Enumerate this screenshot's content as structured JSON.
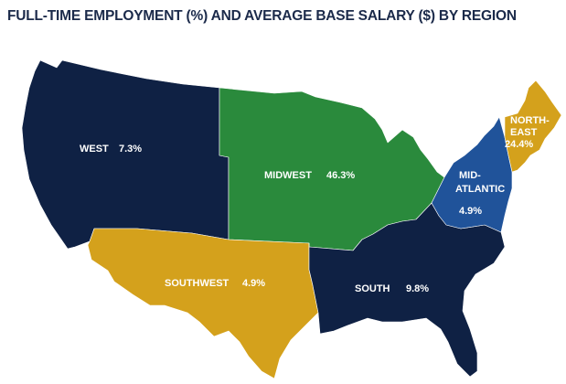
{
  "title": "FULL-TIME EMPLOYMENT (%) AND AVERAGE BASE SALARY ($) BY REGION",
  "colors": {
    "west": "#0f2144",
    "midwest": "#2a8a3c",
    "southwest": "#d4a11c",
    "south": "#0f2144",
    "mid_atlantic": "#20539a",
    "northeast": "#d4a11c"
  },
  "regions": {
    "west": {
      "name": "WEST",
      "value": "7.3%"
    },
    "midwest": {
      "name": "MIDWEST",
      "value": "46.3%"
    },
    "southwest": {
      "name": "SOUTHWEST",
      "value": "4.9%"
    },
    "south": {
      "name": "SOUTH",
      "value": "9.8%"
    },
    "mid_atlantic": {
      "name_line1": "MID-",
      "name_line2": "ATLANTIC",
      "value": "4.9%"
    },
    "northeast": {
      "name_line1": "NORTH-",
      "name_line2": "EAST",
      "value": "24.4%"
    }
  }
}
